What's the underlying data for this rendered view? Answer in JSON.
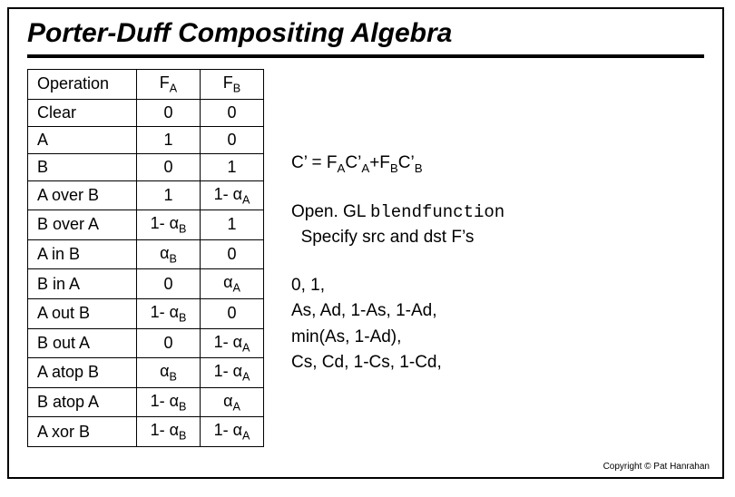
{
  "title": "Porter-Duff Compositing Algebra",
  "table": {
    "headers": {
      "op": "Operation",
      "fa": "F_A",
      "fb": "F_B"
    },
    "rows": [
      {
        "op": "Clear",
        "fa": "0",
        "fb": "0"
      },
      {
        "op": "A",
        "fa": "1",
        "fb": "0"
      },
      {
        "op": "B",
        "fa": "0",
        "fb": "1"
      },
      {
        "op": "A over B",
        "fa": "1",
        "fb": "1- α_A"
      },
      {
        "op": "B over A",
        "fa": "1- α_B",
        "fb": "1"
      },
      {
        "op": "A in B",
        "fa": "α_B",
        "fb": "0"
      },
      {
        "op": "B in A",
        "fa": "0",
        "fb": "α_A"
      },
      {
        "op": "A out B",
        "fa": "1- α_B",
        "fb": "0"
      },
      {
        "op": "B out A",
        "fa": "0",
        "fb": "1- α_A"
      },
      {
        "op": "A atop B",
        "fa": "α_B",
        "fb": "1- α_A"
      },
      {
        "op": "B atop A",
        "fa": "1- α_B",
        "fb": "α_A"
      },
      {
        "op": "A xor B",
        "fa": "1- α_B",
        "fb": "1- α_A"
      }
    ]
  },
  "formula": "C’ = F_AC’_A+F_BC’_B",
  "opengl": {
    "line1_pre": "Open. GL ",
    "line1_mono": "blendfunction",
    "line2": "Specify src and dst F’s"
  },
  "options": {
    "l1": "0, 1,",
    "l2": "As, Ad, 1-As, 1-Ad,",
    "l3": "min(As, 1-Ad),",
    "l4": "Cs, Cd, 1-Cs, 1-Cd,"
  },
  "copyright": "Copyright © Pat Hanrahan"
}
